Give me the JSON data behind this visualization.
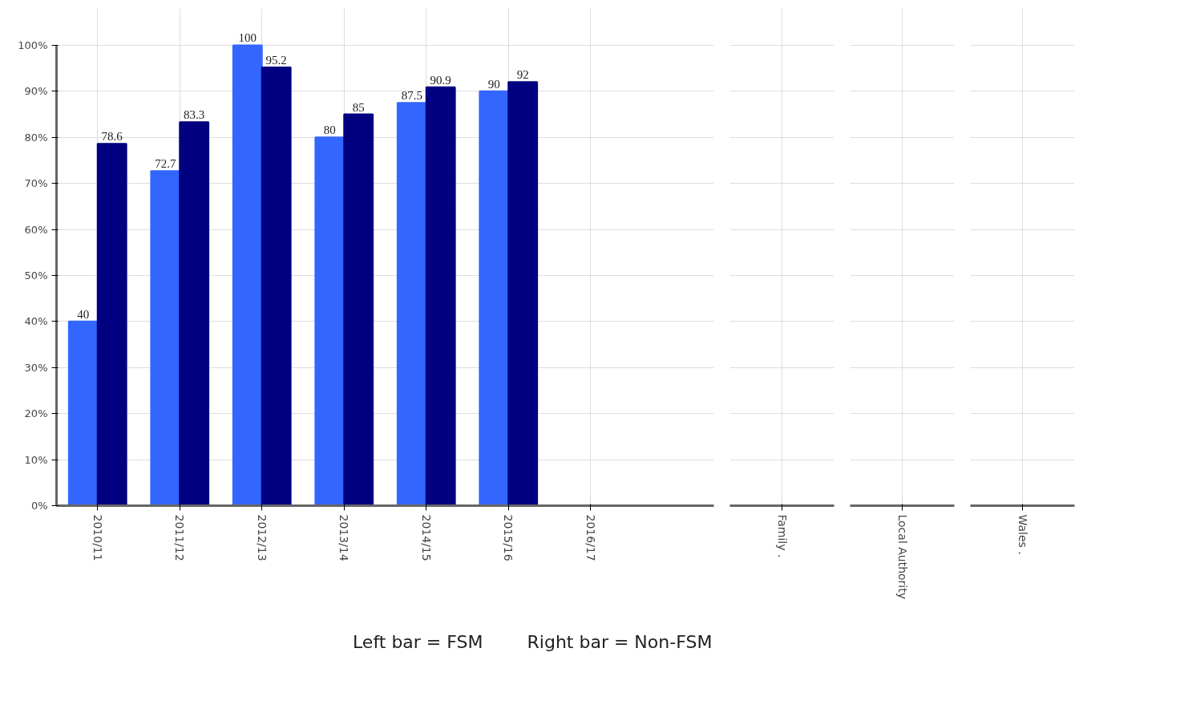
{
  "chart_data": [
    {
      "type": "bar",
      "categories": [
        "2010/11",
        "2011/12",
        "2012/13",
        "2013/14",
        "2014/15",
        "2015/16",
        "2016/17"
      ],
      "series": [
        {
          "color": "#3366ff",
          "values": [
            40,
            72.7,
            100,
            80,
            87.5,
            90,
            null
          ]
        },
        {
          "color": "#000080",
          "values": [
            78.6,
            83.3,
            95.2,
            85,
            90.9,
            92,
            null
          ]
        }
      ],
      "ylim": [
        0,
        100
      ],
      "yticks": [
        {
          "value": 0,
          "label": "0%"
        },
        {
          "value": 10,
          "label": "10%"
        },
        {
          "value": 20,
          "label": "20%"
        },
        {
          "value": 30,
          "label": "30%"
        },
        {
          "value": 40,
          "label": "40%"
        },
        {
          "value": 50,
          "label": "50%"
        },
        {
          "value": 60,
          "label": "60%"
        },
        {
          "value": 70,
          "label": "70%"
        },
        {
          "value": 80,
          "label": "80%"
        },
        {
          "value": 90,
          "label": "90%"
        },
        {
          "value": 100,
          "label": "100%"
        }
      ],
      "grid": true,
      "data_labels": true,
      "annotations": [
        "Left bar = FSM",
        "Right bar = Non-FSM"
      ]
    },
    {
      "type": "bar",
      "categories": [
        "Family ."
      ],
      "series": [
        {
          "color": "#3366ff",
          "values": [
            null
          ]
        },
        {
          "color": "#000080",
          "values": [
            null
          ]
        }
      ],
      "ylim": [
        0,
        100
      ],
      "yticks": [
        0,
        10,
        20,
        30,
        40,
        50,
        60,
        70,
        80,
        90,
        100
      ],
      "grid": true,
      "tick_labels": "x"
    },
    {
      "type": "bar",
      "categories": [
        "Local Authority"
      ],
      "series": [
        {
          "color": "#3366ff",
          "values": [
            null
          ]
        },
        {
          "color": "#000080",
          "values": [
            null
          ]
        }
      ],
      "ylim": [
        0,
        100
      ],
      "yticks": [
        0,
        10,
        20,
        30,
        40,
        50,
        60,
        70,
        80,
        90,
        100
      ],
      "grid": true,
      "tick_labels": "x"
    },
    {
      "type": "bar",
      "categories": [
        "Wales ."
      ],
      "series": [
        {
          "color": "#3366ff",
          "values": [
            null
          ]
        },
        {
          "color": "#000080",
          "values": [
            null
          ]
        }
      ],
      "ylim": [
        0,
        100
      ],
      "yticks": [
        0,
        10,
        20,
        30,
        40,
        50,
        60,
        70,
        80,
        90,
        100
      ],
      "grid": true,
      "tick_labels": "x"
    }
  ]
}
